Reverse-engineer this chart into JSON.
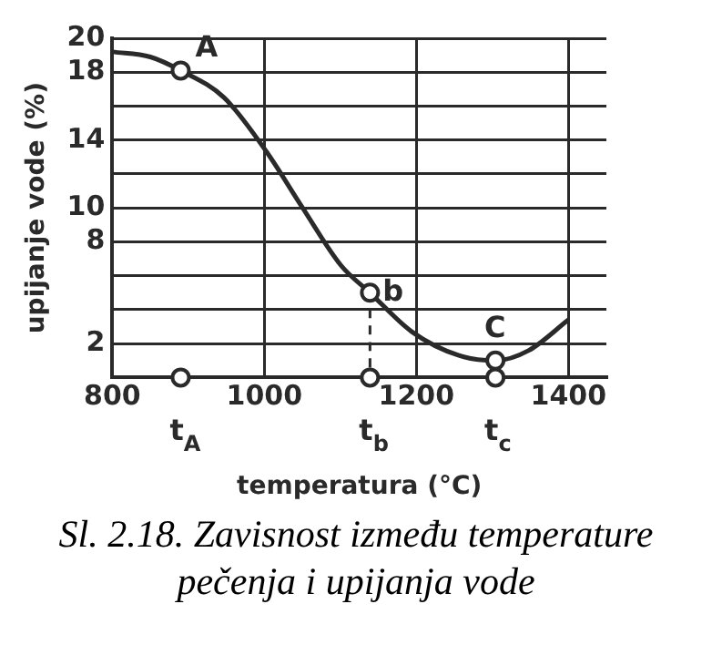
{
  "chart_data": {
    "type": "line",
    "xlabel": "temperatura (°C)",
    "ylabel": "upijanje vode (%)",
    "xlim": [
      800,
      1450
    ],
    "xticks": [
      800,
      1000,
      1200,
      1400
    ],
    "ylim": [
      0,
      20
    ],
    "yticks": [
      {
        "value": 0,
        "label": null
      },
      {
        "value": 2,
        "label": "2"
      },
      {
        "value": 4,
        "label": null
      },
      {
        "value": 6,
        "label": null
      },
      8,
      {
        "value": 10,
        "label": "10"
      },
      {
        "value": 12,
        "label": null
      },
      {
        "value": 14,
        "label": "14"
      },
      {
        "value": 16,
        "label": null
      },
      {
        "value": 18,
        "label": "18"
      },
      {
        "value": 20,
        "label": "20"
      }
    ],
    "grid": true,
    "series": [
      {
        "color": "#2a2a2a",
        "marker": "none",
        "x": [
          800,
          850,
          890,
          947,
          1003,
          1049,
          1101,
          1139,
          1194,
          1256,
          1304,
          1348,
          1400
        ],
        "values": [
          19.2,
          18.9,
          18.1,
          16.5,
          13.3,
          10.1,
          6.6,
          5.0,
          2.7,
          1.3,
          1.0,
          1.6,
          3.4
        ]
      },
      {
        "type": "scatter",
        "color": "#2a2a2a",
        "marker": "circle",
        "x": [
          890,
          1139,
          1304,
          890,
          1139,
          1304
        ],
        "values": [
          18.1,
          5.0,
          1.0,
          0,
          0,
          0
        ]
      },
      {
        "type": "line",
        "color": "#2a2a2a",
        "marker": "none",
        "line_style": "dashed",
        "x": [
          1139,
          1139
        ],
        "values": [
          5.0,
          0
        ]
      }
    ],
    "annotations": [
      {
        "text": "A",
        "x": 890,
        "y": 18.1
      },
      {
        "text": "b",
        "x": 1139,
        "y": 5.0
      },
      {
        "text": "C",
        "x": 1304,
        "y": 1.0
      },
      {
        "text": "t$_{A}$",
        "x": 890,
        "y": 0
      },
      {
        "text": "t$_{b}$",
        "x": 1139,
        "y": 0
      },
      {
        "text": "t$_{c}$",
        "x": 1304,
        "y": 0
      },
      "Sl. 2.18. Zavisnost između temperature pečenja i upijanja vode"
    ]
  }
}
